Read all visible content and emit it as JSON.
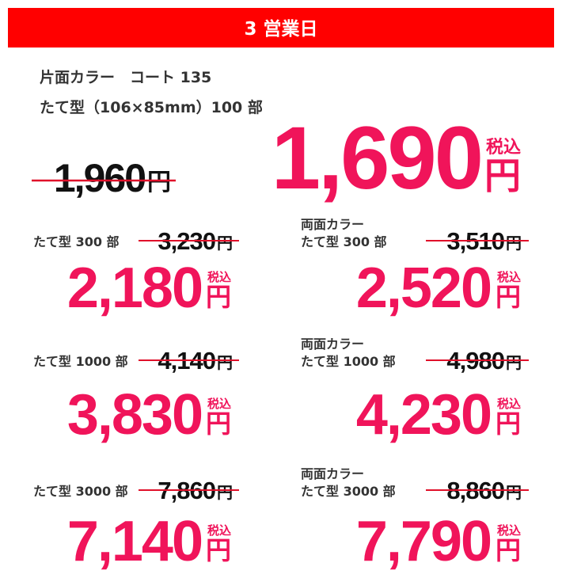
{
  "header": {
    "title": "3 営業日"
  },
  "featured": {
    "spec_lines": [
      "片面カラー　コート 135",
      "たて型（106×85mm）100 部"
    ],
    "regular_price": "1,960",
    "price": "1,690"
  },
  "tax_label": "税込",
  "currency": "円",
  "items": [
    {
      "label_lines": [
        "たて型 300 部"
      ],
      "regular_price": "3,230",
      "price": "2,180"
    },
    {
      "label_lines": [
        "両面カラー",
        "たて型 300 部"
      ],
      "regular_price": "3,510",
      "price": "2,520"
    },
    {
      "label_lines": [
        "たて型 1000 部"
      ],
      "regular_price": "4,140",
      "price": "3,830"
    },
    {
      "label_lines": [
        "両面カラー",
        "たて型 1000 部"
      ],
      "regular_price": "4,980",
      "price": "4,230"
    },
    {
      "label_lines": [
        "たて型 3000 部"
      ],
      "regular_price": "7,860",
      "price": "7,140"
    },
    {
      "label_lines": [
        "両面カラー",
        "たて型 3000 部"
      ],
      "regular_price": "8,860",
      "price": "7,790"
    }
  ]
}
